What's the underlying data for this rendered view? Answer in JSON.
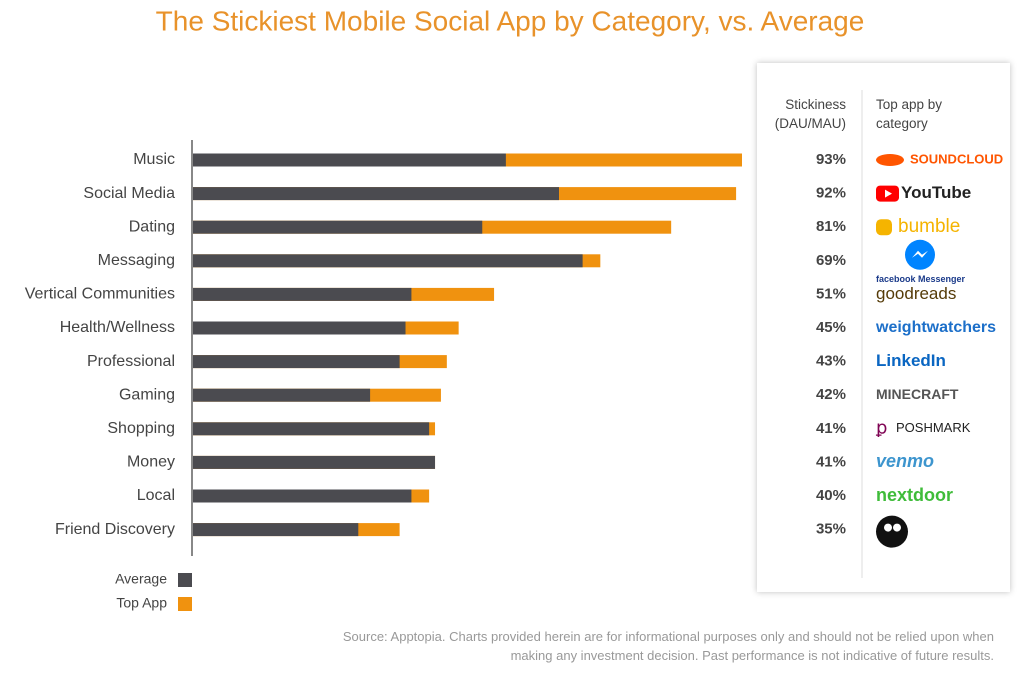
{
  "chart_data": {
    "type": "bar",
    "title": "The Stickiest Mobile Social App by Category, vs. Average",
    "categories": [
      "Music",
      "Social Media",
      "Dating",
      "Messaging",
      "Vertical Communities",
      "Health/Wellness",
      "Professional",
      "Gaming",
      "Shopping",
      "Money",
      "Local",
      "Friend Discovery"
    ],
    "series": [
      {
        "name": "Average",
        "color": "#4b4b50",
        "values": [
          53,
          62,
          49,
          66,
          37,
          36,
          35,
          30,
          40,
          41,
          37,
          28
        ]
      },
      {
        "name": "Top App",
        "color": "#f0920f",
        "values": [
          93,
          92,
          81,
          69,
          51,
          45,
          43,
          42,
          41,
          41,
          40,
          35
        ],
        "value_labels": [
          "93%",
          "92%",
          "81%",
          "69%",
          "51%",
          "45%",
          "43%",
          "42%",
          "41%",
          "41%",
          "40%",
          "35%"
        ]
      }
    ],
    "table_headers": [
      "Stickiness (DAU/MAU)",
      "Top app by category"
    ],
    "top_apps": [
      "SOUNDCLOUD",
      "YouTube",
      "bumble",
      "facebook Messenger",
      "goodreads",
      "weightwatchers",
      "LinkedIn",
      "MINECRAFT",
      "POSHMARK",
      "venmo",
      "nextdoor",
      null
    ],
    "source": "Source: Apptopia. Charts provided herein are for informational purposes only and should not be relied upon when making any investment decision. Past performance is not indicative of future results."
  }
}
